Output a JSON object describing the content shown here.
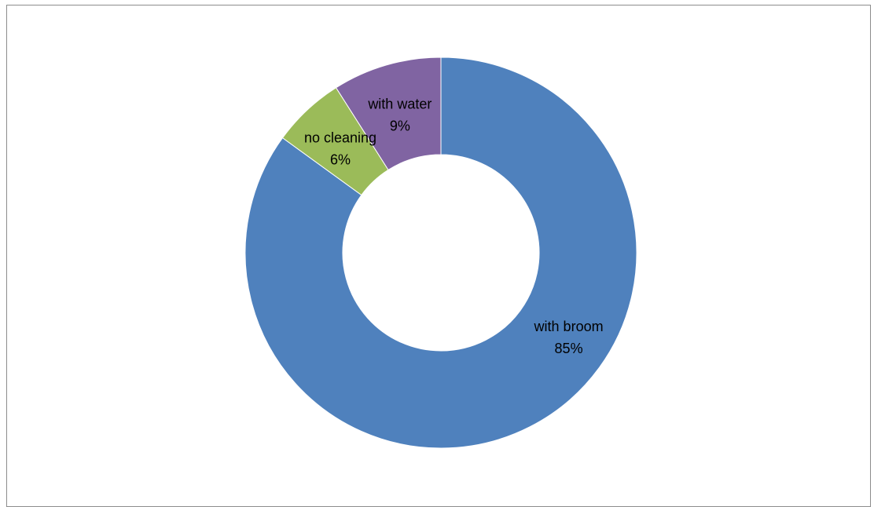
{
  "chart_data": {
    "type": "pie",
    "variant": "doughnut",
    "title": "",
    "start_angle_deg": 0,
    "direction": "clockwise",
    "slices": [
      {
        "label": "with broom",
        "value": 85,
        "value_label": "85%",
        "color": "#4F81BD"
      },
      {
        "label": "no cleaning",
        "value": 6,
        "value_label": "6%",
        "color": "#9BBB59"
      },
      {
        "label": "with water",
        "value": 9,
        "value_label": "9%",
        "color": "#8064A2"
      }
    ],
    "legend": "none"
  }
}
